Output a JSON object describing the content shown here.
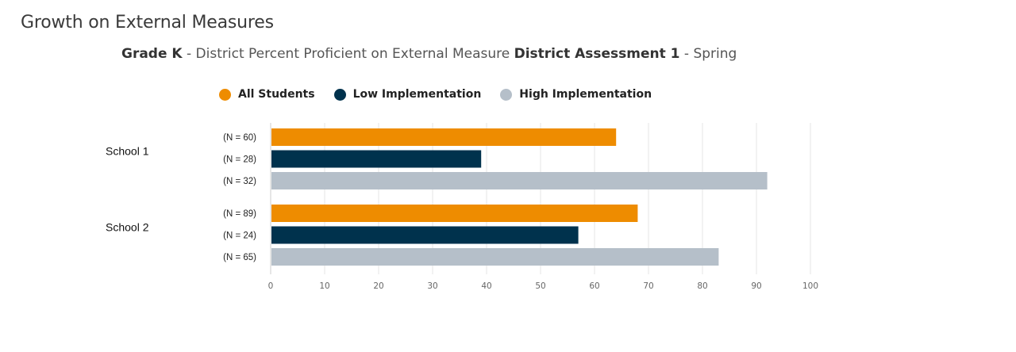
{
  "page": {
    "title": "Growth on External Measures",
    "subtitle": {
      "grade": "Grade K",
      "sep1": " - District Percent Proficient on External Measure ",
      "assessment": "District Assessment 1",
      "sep2": " - Spring"
    }
  },
  "colors": {
    "all_students": "#ee8c00",
    "low_implementation": "#00324d",
    "high_implementation": "#b5bfc9"
  },
  "chart_data": {
    "type": "bar",
    "orientation": "horizontal",
    "categories": [
      "School 1",
      "School 2"
    ],
    "series": [
      {
        "name": "All Students",
        "key": "all_students",
        "values": [
          64,
          68
        ],
        "n_labels": [
          "(N = 60)",
          "(N = 89)"
        ]
      },
      {
        "name": "Low Implementation",
        "key": "low_implementation",
        "values": [
          39,
          57
        ],
        "n_labels": [
          "(N = 28)",
          "(N = 24)"
        ]
      },
      {
        "name": "High Implementation",
        "key": "high_implementation",
        "values": [
          92,
          83
        ],
        "n_labels": [
          "(N = 32)",
          "(N = 65)"
        ]
      }
    ],
    "xlim": [
      0,
      100
    ],
    "xticks": [
      "0",
      "10",
      "20",
      "30",
      "40",
      "50",
      "60",
      "70",
      "80",
      "90",
      "100"
    ],
    "grid": true,
    "legend_position": "top"
  }
}
